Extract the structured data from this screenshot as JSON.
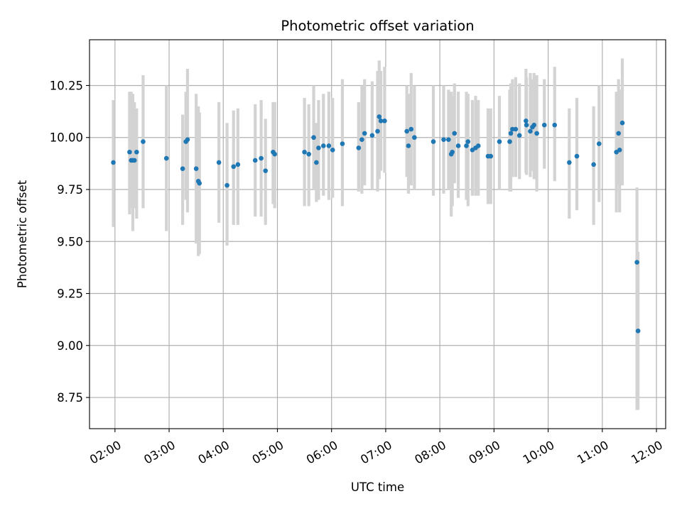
{
  "chart_data": {
    "type": "scatter",
    "title": "Photometric offset variation",
    "xlabel": "UTC time",
    "ylabel": "Photometric offset",
    "x_unit": "UTC hours",
    "xlim": [
      1.53,
      12.17
    ],
    "ylim": [
      8.6,
      10.47
    ],
    "x_ticks": [
      {
        "value": 2,
        "label": "02:00"
      },
      {
        "value": 3,
        "label": "03:00"
      },
      {
        "value": 4,
        "label": "04:00"
      },
      {
        "value": 5,
        "label": "05:00"
      },
      {
        "value": 6,
        "label": "06:00"
      },
      {
        "value": 7,
        "label": "07:00"
      },
      {
        "value": 8,
        "label": "08:00"
      },
      {
        "value": 9,
        "label": "09:00"
      },
      {
        "value": 10,
        "label": "10:00"
      },
      {
        "value": 11,
        "label": "11:00"
      },
      {
        "value": 12,
        "label": "12:00"
      }
    ],
    "y_ticks": [
      {
        "value": 8.75,
        "label": "8.75"
      },
      {
        "value": 9.0,
        "label": "9.00"
      },
      {
        "value": 9.25,
        "label": "9.25"
      },
      {
        "value": 9.5,
        "label": "9.50"
      },
      {
        "value": 9.75,
        "label": "9.75"
      },
      {
        "value": 10.0,
        "label": "10.00"
      },
      {
        "value": 10.25,
        "label": "10.25"
      }
    ],
    "grid": true,
    "marker_color": "#1f77b4",
    "errorbar_color": "#d3d3d3",
    "points": [
      [
        1.97,
        9.88,
        9.57,
        10.18
      ],
      [
        2.27,
        9.93,
        9.63,
        10.22
      ],
      [
        2.3,
        9.89,
        9.66,
        10.22
      ],
      [
        2.33,
        9.89,
        9.55,
        10.21
      ],
      [
        2.36,
        9.89,
        9.66,
        10.17
      ],
      [
        2.4,
        9.93,
        9.61,
        10.14
      ],
      [
        2.52,
        9.98,
        9.66,
        10.3
      ],
      [
        2.95,
        9.9,
        9.55,
        10.25
      ],
      [
        3.25,
        9.85,
        9.58,
        10.11
      ],
      [
        3.31,
        9.98,
        9.7,
        10.22
      ],
      [
        3.34,
        9.99,
        9.64,
        10.33
      ],
      [
        3.5,
        9.85,
        9.49,
        10.21
      ],
      [
        3.54,
        9.79,
        9.43,
        10.15
      ],
      [
        3.56,
        9.78,
        9.44,
        10.12
      ],
      [
        3.92,
        9.88,
        9.59,
        10.17
      ],
      [
        4.07,
        9.77,
        9.48,
        10.07
      ],
      [
        4.19,
        9.86,
        9.58,
        10.13
      ],
      [
        4.27,
        9.87,
        9.58,
        10.14
      ],
      [
        4.59,
        9.89,
        9.62,
        10.16
      ],
      [
        4.7,
        9.9,
        9.62,
        10.18
      ],
      [
        4.78,
        9.84,
        9.58,
        10.09
      ],
      [
        4.92,
        9.93,
        9.68,
        10.17
      ],
      [
        4.95,
        9.92,
        9.66,
        10.17
      ],
      [
        5.5,
        9.93,
        9.67,
        10.19
      ],
      [
        5.58,
        9.92,
        9.67,
        10.16
      ],
      [
        5.67,
        10.0,
        9.75,
        10.25
      ],
      [
        5.72,
        9.88,
        9.69,
        10.07
      ],
      [
        5.76,
        9.95,
        9.7,
        10.18
      ],
      [
        5.85,
        9.96,
        9.72,
        10.21
      ],
      [
        5.95,
        9.96,
        9.7,
        10.22
      ],
      [
        6.02,
        9.94,
        9.71,
        10.19
      ],
      [
        6.2,
        9.97,
        9.67,
        10.28
      ],
      [
        6.5,
        9.95,
        9.74,
        10.17
      ],
      [
        6.56,
        9.99,
        9.73,
        10.25
      ],
      [
        6.61,
        10.02,
        9.77,
        10.28
      ],
      [
        6.75,
        10.01,
        9.75,
        10.27
      ],
      [
        6.85,
        10.03,
        9.74,
        10.32
      ],
      [
        6.88,
        10.1,
        9.8,
        10.37
      ],
      [
        6.91,
        10.08,
        9.84,
        10.32
      ],
      [
        6.98,
        10.08,
        9.83,
        10.34
      ],
      [
        7.39,
        10.03,
        9.81,
        10.25
      ],
      [
        7.42,
        9.96,
        9.73,
        10.21
      ],
      [
        7.47,
        10.04,
        9.77,
        10.31
      ],
      [
        7.53,
        10.0,
        9.75,
        10.25
      ],
      [
        7.88,
        9.98,
        9.72,
        10.25
      ],
      [
        8.07,
        9.99,
        9.73,
        10.25
      ],
      [
        8.16,
        9.99,
        9.75,
        10.23
      ],
      [
        8.21,
        9.92,
        9.62,
        10.22
      ],
      [
        8.23,
        9.93,
        9.67,
        10.2
      ],
      [
        8.27,
        10.02,
        9.78,
        10.26
      ],
      [
        8.34,
        9.96,
        9.71,
        10.22
      ],
      [
        8.49,
        9.96,
        9.7,
        10.22
      ],
      [
        8.52,
        9.98,
        9.67,
        10.21
      ],
      [
        8.6,
        9.94,
        9.72,
        10.18
      ],
      [
        8.66,
        9.95,
        9.72,
        10.2
      ],
      [
        8.71,
        9.96,
        9.72,
        10.18
      ],
      [
        8.89,
        9.91,
        9.68,
        10.14
      ],
      [
        8.94,
        9.91,
        9.68,
        10.14
      ],
      [
        9.1,
        9.98,
        9.75,
        10.2
      ],
      [
        9.29,
        9.98,
        9.74,
        10.23
      ],
      [
        9.31,
        10.02,
        9.74,
        10.26
      ],
      [
        9.34,
        10.04,
        9.81,
        10.28
      ],
      [
        9.4,
        10.04,
        9.81,
        10.29
      ],
      [
        9.47,
        10.01,
        9.8,
        10.26
      ],
      [
        9.59,
        10.08,
        9.83,
        10.33
      ],
      [
        9.6,
        10.06,
        9.82,
        10.29
      ],
      [
        9.67,
        10.03,
        9.81,
        10.31
      ],
      [
        9.71,
        10.05,
        9.84,
        10.28
      ],
      [
        9.74,
        10.06,
        9.8,
        10.31
      ],
      [
        9.79,
        10.02,
        9.74,
        10.3
      ],
      [
        9.93,
        10.06,
        9.85,
        10.28
      ],
      [
        10.12,
        10.06,
        9.79,
        10.34
      ],
      [
        10.39,
        9.88,
        9.61,
        10.14
      ],
      [
        10.53,
        9.91,
        9.65,
        10.19
      ],
      [
        10.84,
        9.87,
        9.58,
        10.15
      ],
      [
        10.94,
        9.97,
        9.69,
        10.25
      ],
      [
        11.26,
        9.93,
        9.64,
        10.22
      ],
      [
        11.3,
        10.02,
        9.77,
        10.28
      ],
      [
        11.32,
        9.94,
        9.64,
        10.23
      ],
      [
        11.37,
        10.07,
        9.77,
        10.38
      ],
      [
        11.64,
        9.4,
        8.69,
        9.76
      ],
      [
        11.66,
        9.07,
        8.69,
        9.45
      ]
    ]
  }
}
